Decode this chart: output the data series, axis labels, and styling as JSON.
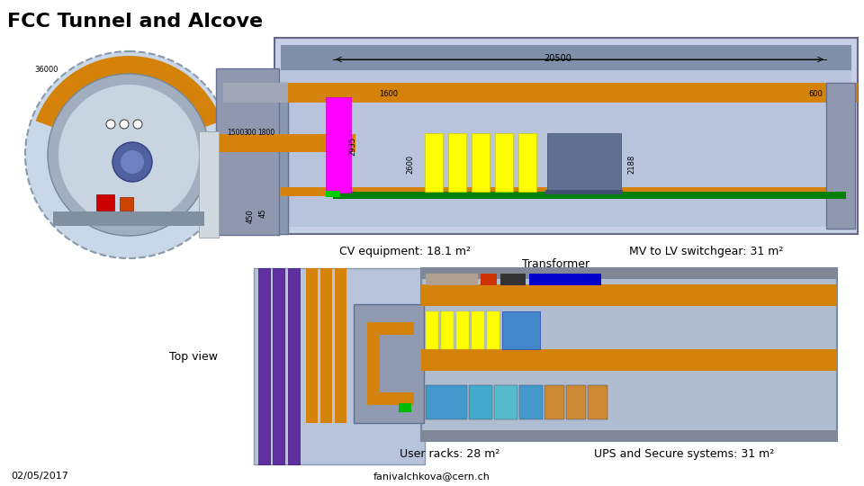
{
  "title": "FCC Tunnel and Alcove",
  "title_fontsize": 16,
  "bg_color": "#ffffff",
  "label_cv": "CV equipment: 18.1 m²",
  "label_transformer": "Transformer",
  "label_mv": "MV to LV switchgear: 31 m²",
  "label_topview": "Top view",
  "label_userracks": "User racks: 28 m²",
  "label_ups": "UPS and Secure systems: 31 m²",
  "label_date": "02/05/2017",
  "label_email": "fanivalchkova@cern.ch",
  "tunnel_bg": "#c8d0e8",
  "orange_color": "#d4820a",
  "purple_color": "#7030a0",
  "yellow_color": "#ffff00",
  "green_color": "#008000",
  "magenta_color": "#ff00ff",
  "alcove_bg": "#b8c4dc",
  "dim_20500": "20500",
  "dim_2600": "2600",
  "dim_2188": "2188",
  "dim_1500": "1500",
  "dim_1600": "1600",
  "dim_300": "300",
  "dim_1800": "1800",
  "dim_2935": "2935",
  "dim_36000": "36000",
  "dim_600": "600",
  "dim_450": "450",
  "dim_45": "45"
}
